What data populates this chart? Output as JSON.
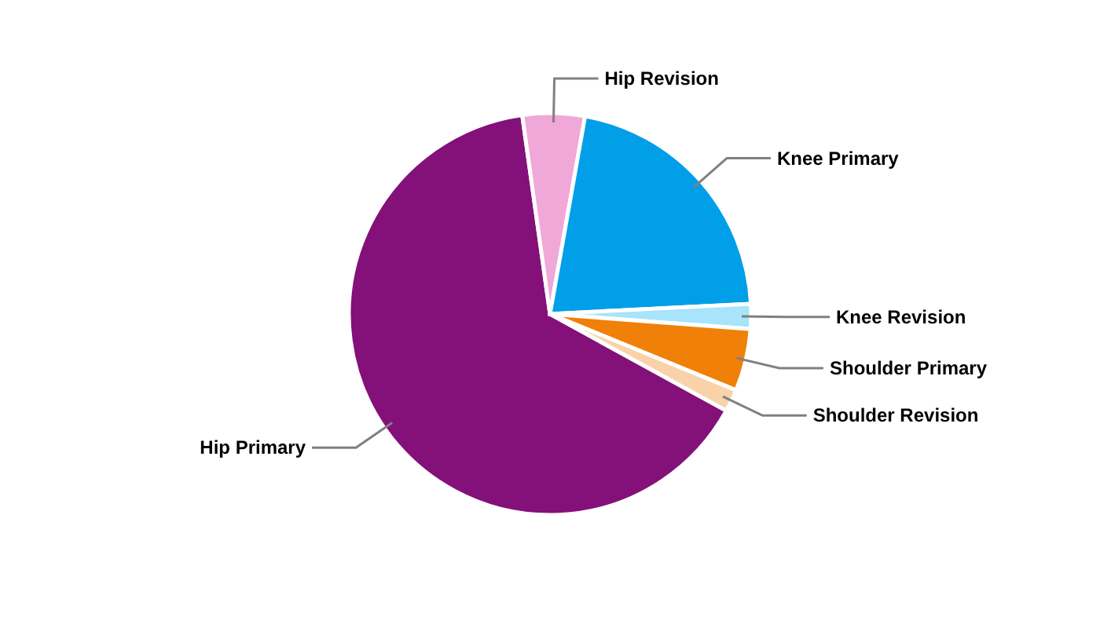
{
  "chart_data": {
    "type": "pie",
    "categories": [
      "Hip Primary",
      "Hip Revision",
      "Knee Primary",
      "Knee Revision",
      "Shoulder Primary",
      "Shoulder Revision"
    ],
    "values": [
      64.8,
      5.0,
      21.4,
      2.0,
      5.0,
      1.8
    ],
    "colors": [
      "#841079",
      "#f0a8d8",
      "#009fe8",
      "#a8e4fa",
      "#f08008",
      "#fad2aa"
    ]
  }
}
